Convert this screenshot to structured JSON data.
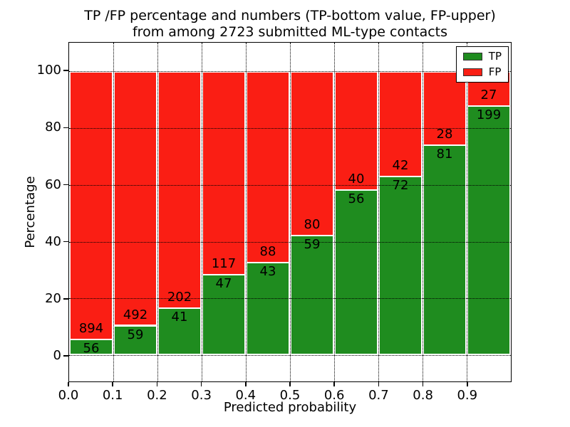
{
  "figure": {
    "title_line1": "TP /FP percentage and numbers (TP-bottom value, FP-upper)",
    "title_line2": "from among 2723 submitted ML-type contacts",
    "xlabel": "Predicted probability",
    "ylabel": "Percentage"
  },
  "colors": {
    "tp_green": "#1f8c1f",
    "fp_red": "#fa1e14",
    "grid": "#000000",
    "frame": "#000000",
    "bar_edge": "#ffffff",
    "background": "#ffffff",
    "text": "#000000"
  },
  "legend": {
    "position": "upper right",
    "items": [
      {
        "label": "TP",
        "color": "#1f8c1f"
      },
      {
        "label": "FP",
        "color": "#fa1e14"
      }
    ]
  },
  "chart_data": {
    "type": "bar",
    "stacked": true,
    "normalization": "each bin stacked to 100% of bin total; labels show raw counts (TP bottom, FP upper)",
    "title": "TP /FP percentage and numbers (TP-bottom value, FP-upper) from among 2723 submitted ML-type contacts",
    "xlabel": "Predicted probability",
    "ylabel": "Percentage",
    "bin_left_edges": [
      0.0,
      0.1,
      0.2,
      0.3,
      0.4,
      0.5,
      0.6,
      0.7,
      0.8,
      0.9
    ],
    "bin_width": 0.1,
    "series": [
      {
        "name": "TP",
        "color": "#1f8c1f",
        "counts": [
          56,
          59,
          41,
          47,
          43,
          59,
          56,
          72,
          81,
          199
        ]
      },
      {
        "name": "FP",
        "color": "#fa1e14",
        "counts": [
          894,
          492,
          202,
          117,
          88,
          80,
          40,
          42,
          28,
          27
        ]
      }
    ],
    "tp_percent_of_bin": [
      5.9,
      10.7,
      16.9,
      28.7,
      32.8,
      42.4,
      58.3,
      63.2,
      74.3,
      88.1
    ],
    "total_contacts": 2723,
    "xticks": [
      "0.0",
      "0.1",
      "0.2",
      "0.3",
      "0.4",
      "0.5",
      "0.6",
      "0.7",
      "0.8",
      "0.9"
    ],
    "yticks": [
      0,
      20,
      40,
      60,
      80,
      100
    ],
    "xlim": [
      0.0,
      1.0
    ],
    "ylim": [
      -9.2,
      110.0
    ],
    "grid": "dotted black, drawn above bars",
    "legend_position": "upper right"
  }
}
